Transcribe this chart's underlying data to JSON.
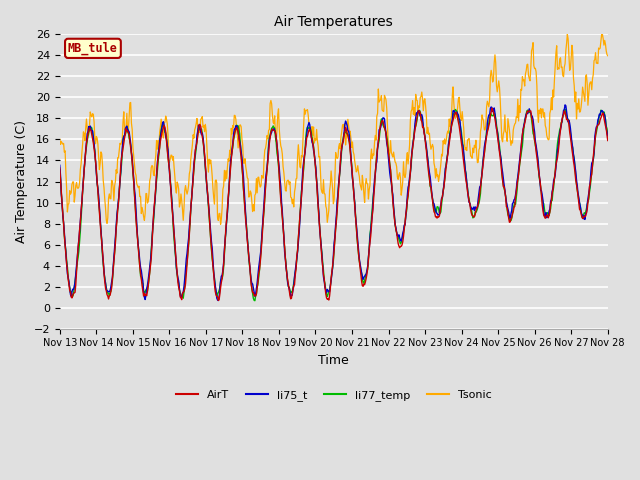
{
  "title": "Air Temperatures",
  "xlabel": "Time",
  "ylabel": "Air Temperature (C)",
  "site_label": "MB_tule",
  "ylim": [
    -2,
    26
  ],
  "yticks": [
    -2,
    0,
    2,
    4,
    6,
    8,
    10,
    12,
    14,
    16,
    18,
    20,
    22,
    24,
    26
  ],
  "xtick_labels": [
    "Nov 13",
    "Nov 14",
    "Nov 15",
    "Nov 16",
    "Nov 17",
    "Nov 18",
    "Nov 19",
    "Nov 20",
    "Nov 21",
    "Nov 22",
    "Nov 23",
    "Nov 24",
    "Nov 25",
    "Nov 26",
    "Nov 27",
    "Nov 28"
  ],
  "colors": {
    "AirT": "#cc0000",
    "li75_t": "#0000cc",
    "li77_temp": "#00bb00",
    "Tsonic": "#ffaa00"
  },
  "bg_color": "#e0e0e0",
  "plot_bg_color": "#e0e0e0",
  "grid_color": "#ffffff",
  "site_label_bg": "#ffffcc",
  "site_label_border": "#aa0000"
}
